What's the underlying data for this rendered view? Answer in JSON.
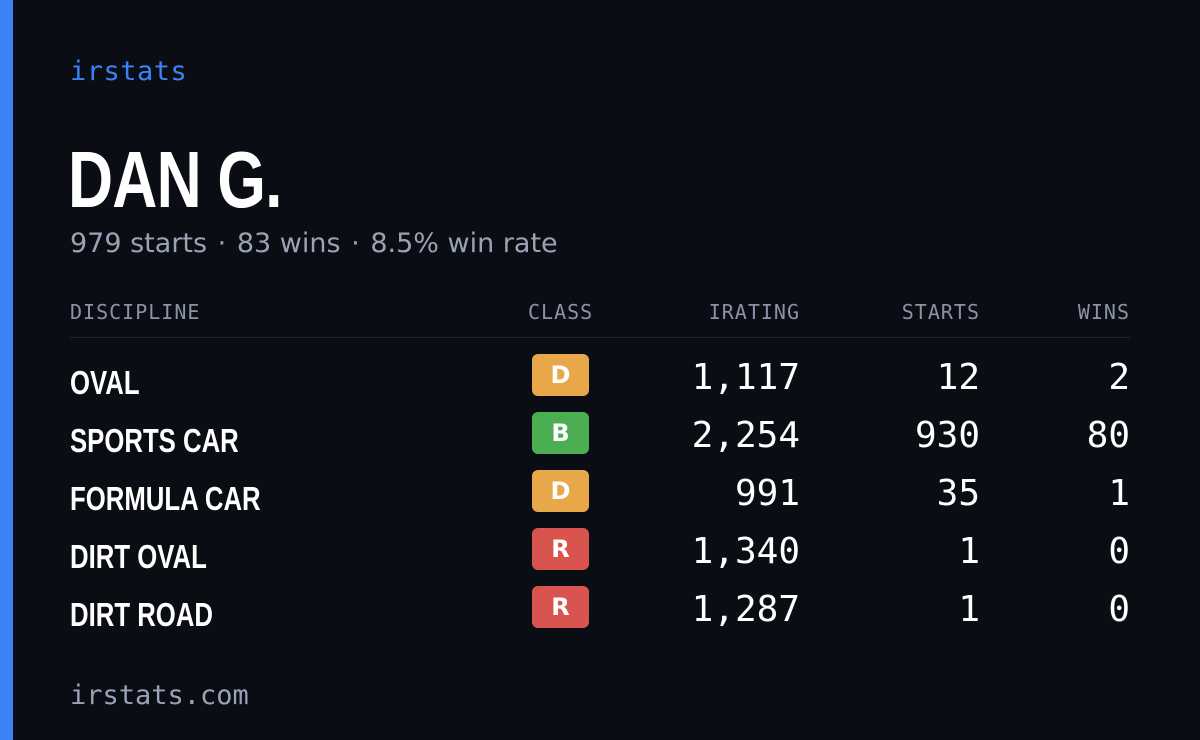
{
  "brand": "irstats",
  "driver_name": "DAN G.",
  "summary": {
    "starts": "979 starts",
    "wins": "83 wins",
    "win_rate": "8.5% win rate",
    "separator": "·"
  },
  "table": {
    "headers": {
      "discipline": "DISCIPLINE",
      "class": "CLASS",
      "irating": "IRATING",
      "starts": "STARTS",
      "wins": "WINS"
    },
    "rows": [
      {
        "discipline": "OVAL",
        "class": "D",
        "class_color": "#e8a84a",
        "irating": "1,117",
        "starts": "12",
        "wins": "2"
      },
      {
        "discipline": "SPORTS CAR",
        "class": "B",
        "class_color": "#4cae52",
        "irating": "2,254",
        "starts": "930",
        "wins": "80"
      },
      {
        "discipline": "FORMULA CAR",
        "class": "D",
        "class_color": "#e8a84a",
        "irating": "991",
        "starts": "35",
        "wins": "1"
      },
      {
        "discipline": "DIRT OVAL",
        "class": "R",
        "class_color": "#d9534f",
        "irating": "1,340",
        "starts": "1",
        "wins": "0"
      },
      {
        "discipline": "DIRT ROAD",
        "class": "R",
        "class_color": "#d9534f",
        "irating": "1,287",
        "starts": "1",
        "wins": "0"
      }
    ]
  },
  "footer": "irstats.com",
  "colors": {
    "accent": "#3b82f6",
    "background": "#0a0d14",
    "muted_text": "#9aa3b5"
  }
}
